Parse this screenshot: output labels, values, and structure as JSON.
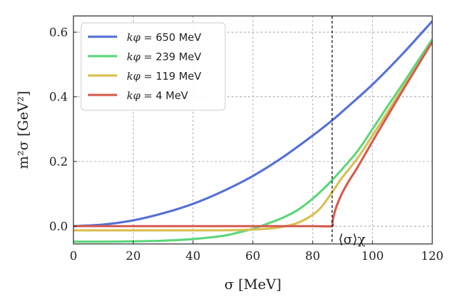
{
  "chart_data": {
    "type": "line",
    "title": "",
    "xlabel": "σ [MeV]",
    "ylabel": "m²σ [GeV²]",
    "xlim": [
      0,
      120
    ],
    "ylim": [
      -0.055,
      0.65
    ],
    "xticks": [
      0,
      20,
      40,
      60,
      80,
      100,
      120
    ],
    "yticks": [
      0.0,
      0.2,
      0.4,
      0.6
    ],
    "xtick_labels": [
      "0",
      "20",
      "40",
      "60",
      "80",
      "100",
      "120"
    ],
    "ytick_labels": [
      "0.0",
      "0.2",
      "0.4",
      "0.6"
    ],
    "grid": true,
    "legend_position": "top-left",
    "annotation": {
      "text": "⟨σ⟩χ",
      "x": 86.5
    },
    "series": [
      {
        "name": "kφ = 650 MeV",
        "legend_math": "kφ =",
        "legend_value": "650 MeV",
        "color": "#5470d6",
        "x": [
          0,
          10,
          20,
          30,
          40,
          50,
          60,
          70,
          80,
          86.5,
          90,
          100,
          110,
          120
        ],
        "y": [
          0.0,
          0.005,
          0.018,
          0.04,
          0.069,
          0.108,
          0.155,
          0.213,
          0.28,
          0.327,
          0.355,
          0.438,
          0.532,
          0.634
        ]
      },
      {
        "name": "kφ = 239 MeV",
        "legend_math": "kφ =",
        "legend_value": "239 MeV",
        "color": "#5cd67a",
        "x": [
          0,
          10,
          20,
          30,
          40,
          50,
          55,
          60,
          65,
          70,
          75,
          80,
          85,
          90,
          95,
          100,
          105,
          110,
          115,
          120
        ],
        "y": [
          -0.048,
          -0.048,
          -0.047,
          -0.045,
          -0.04,
          -0.03,
          -0.02,
          -0.008,
          0.008,
          0.026,
          0.05,
          0.085,
          0.128,
          0.178,
          0.232,
          0.3,
          0.37,
          0.438,
          0.508,
          0.578
        ]
      },
      {
        "name": "kφ = 119 MeV",
        "legend_math": "kφ =",
        "legend_value": "119 MeV",
        "color": "#d9bf52",
        "x": [
          0,
          20,
          40,
          55,
          65,
          70,
          75,
          80,
          83,
          86,
          88,
          90,
          95,
          100,
          105,
          110,
          115,
          120
        ],
        "y": [
          -0.013,
          -0.013,
          -0.013,
          -0.012,
          -0.008,
          -0.002,
          0.01,
          0.035,
          0.06,
          0.098,
          0.125,
          0.152,
          0.21,
          0.28,
          0.352,
          0.425,
          0.496,
          0.57
        ]
      },
      {
        "name": "kφ = 4 MeV",
        "legend_math": "kφ =",
        "legend_value": "4 MeV",
        "color": "#d65c4f",
        "x": [
          0,
          20,
          40,
          60,
          80,
          86.3,
          86.6,
          87,
          87.5,
          88,
          89,
          90,
          92,
          95,
          100,
          105,
          110,
          115,
          120
        ],
        "y": [
          0.0,
          0.0,
          0.0,
          0.0,
          0.0,
          0.0,
          0.012,
          0.03,
          0.048,
          0.062,
          0.085,
          0.105,
          0.138,
          0.182,
          0.262,
          0.34,
          0.418,
          0.494,
          0.57
        ]
      }
    ]
  }
}
